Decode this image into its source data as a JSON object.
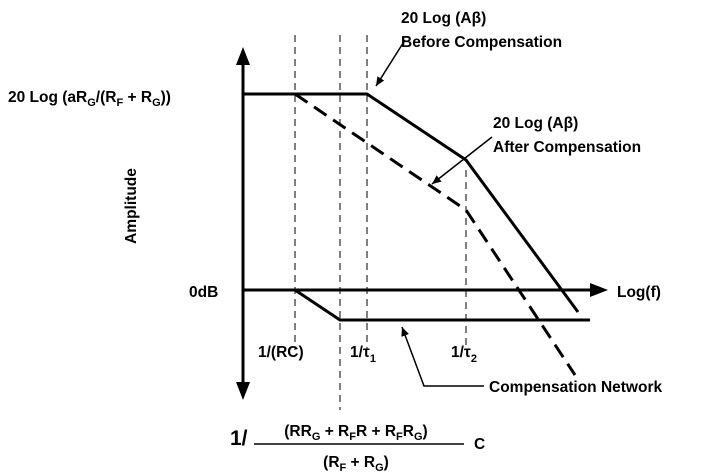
{
  "labels": {
    "before_line1": "20 Log (Aβ)",
    "before_line2": "Before Compensation",
    "after_line1": "20 Log (Aβ)",
    "after_line2": "After Compensation",
    "gain_level": {
      "a": "20 Log (aR",
      "s1": "G",
      "b": "/(R",
      "s2": "F",
      "c": " + R",
      "s3": "G",
      "d": "))"
    },
    "y_axis": "Amplitude",
    "zero_db": "0dB",
    "x_axis": "Log(f)",
    "corner_rc": "1/(RC)",
    "corner_tau1": {
      "main": "1/τ",
      "sub": "1"
    },
    "corner_tau2": {
      "main": "1/τ",
      "sub": "2"
    },
    "compensation_network": "Compensation Network",
    "formula": {
      "prefix": "1/",
      "num_a": "(RR",
      "num_s1": "G",
      "num_b": " + R",
      "num_s2": "F",
      "num_c": "R + R",
      "num_s3": "F",
      "num_d": "R",
      "num_s4": "G",
      "num_e": ")",
      "den_a": "(R",
      "den_s1": "F",
      "den_b": " + R",
      "den_s2": "G",
      "den_c": ")",
      "suffix": "C"
    }
  }
}
